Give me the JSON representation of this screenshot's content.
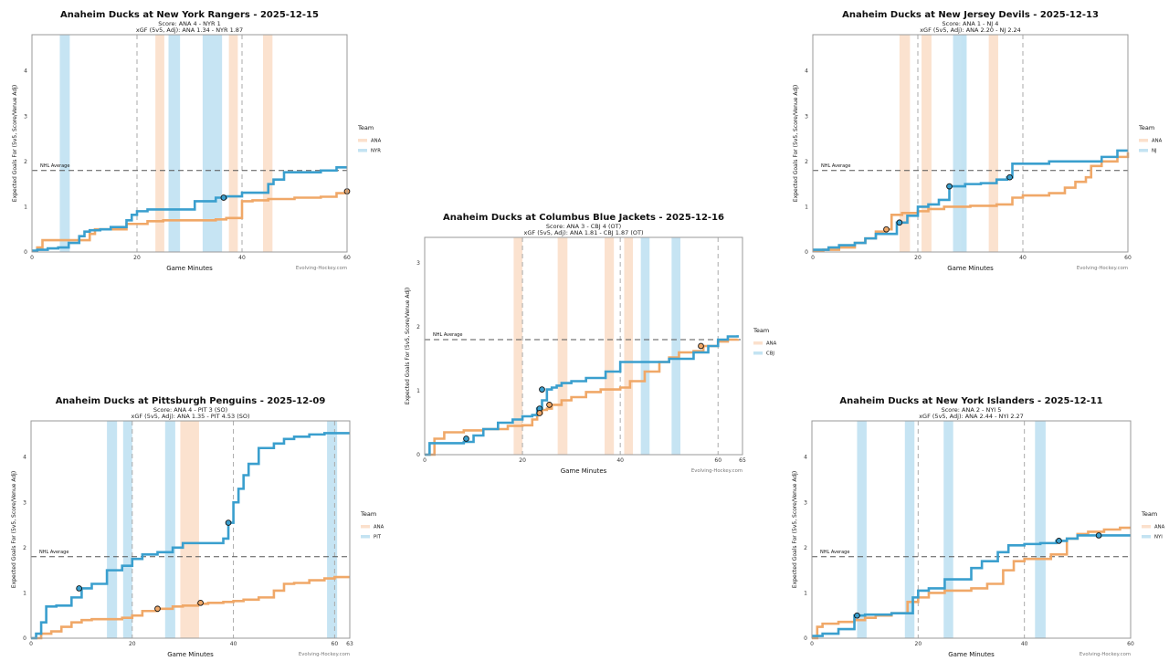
{
  "common": {
    "xlabel": "Game Minutes",
    "ylabel": "Expected Goals For (5v5, Score/Venue Adj)",
    "legend_title": "Team",
    "nhl_avg_label": "NHL Average",
    "nhl_avg_value": 1.8,
    "watermark": "Evolving-Hockey.com",
    "colors": {
      "ANA": "#f0a868",
      "opp": "#3a9fce",
      "ana_band": "#fbe0cc",
      "opp_band": "#c3e3f2"
    }
  },
  "chart_data": [
    {
      "type": "line",
      "title": "Anaheim Ducks at New York Rangers - 2025-12-15",
      "subtitle1": "Score: ANA 4 - NYR 1",
      "subtitle2": "xGF (5v5, Adj): ANA 1.34 - NYR 1.87",
      "xlim": [
        0,
        60
      ],
      "ylim": [
        0,
        4.8
      ],
      "xticks": [
        0,
        20,
        40,
        60
      ],
      "yticks": [
        0,
        1,
        2,
        3,
        4
      ],
      "period_lines": [
        20,
        40
      ],
      "legend": [
        "ANA",
        "NYR"
      ],
      "series": [
        {
          "name": "ANA",
          "x": [
            0,
            1,
            2,
            5,
            10,
            11,
            12,
            15,
            18,
            20,
            22,
            25,
            30,
            35,
            37,
            40,
            42,
            45,
            50,
            55,
            58,
            60
          ],
          "y": [
            0.02,
            0.1,
            0.26,
            0.26,
            0.26,
            0.4,
            0.5,
            0.5,
            0.62,
            0.62,
            0.68,
            0.7,
            0.7,
            0.72,
            0.75,
            1.12,
            1.14,
            1.17,
            1.2,
            1.22,
            1.3,
            1.34
          ]
        },
        {
          "name": "NYR",
          "x": [
            0,
            1,
            3,
            5,
            7,
            9,
            10,
            11,
            13,
            15,
            18,
            19,
            20,
            22,
            25,
            30,
            31,
            35,
            36,
            37,
            40,
            41,
            45,
            46,
            48,
            52,
            55,
            58,
            60
          ],
          "y": [
            0.03,
            0.05,
            0.08,
            0.1,
            0.2,
            0.35,
            0.45,
            0.48,
            0.5,
            0.55,
            0.7,
            0.82,
            0.9,
            0.94,
            0.94,
            0.94,
            1.12,
            1.2,
            1.2,
            1.23,
            1.31,
            1.31,
            1.5,
            1.6,
            1.76,
            1.76,
            1.8,
            1.87,
            1.87
          ]
        }
      ],
      "goals": [
        {
          "team": "opp",
          "x": 36.5,
          "y": 1.2
        },
        {
          "team": "ANA",
          "x": 60,
          "y": 1.34
        }
      ],
      "bands": [
        {
          "team": "opp",
          "x0": 5.3,
          "x1": 7.2
        },
        {
          "team": "ANA",
          "x0": 23.5,
          "x1": 25.2
        },
        {
          "team": "opp",
          "x0": 26.0,
          "x1": 28.2
        },
        {
          "team": "opp",
          "x0": 32.5,
          "x1": 36.2
        },
        {
          "team": "ANA",
          "x0": 37.5,
          "x1": 39.2
        },
        {
          "team": "ANA",
          "x0": 44.0,
          "x1": 45.8
        }
      ]
    },
    {
      "type": "line",
      "title": "Anaheim Ducks at New Jersey Devils - 2025-12-13",
      "subtitle1": "Score: ANA 1 - NJ 4",
      "subtitle2": "xGF (5v5, Adj): ANA 2.20 - NJ 2.24",
      "xlim": [
        0,
        60
      ],
      "ylim": [
        0,
        4.8
      ],
      "xticks": [
        0,
        20,
        40,
        60
      ],
      "yticks": [
        0,
        1,
        2,
        3,
        4
      ],
      "period_lines": [
        20,
        40
      ],
      "legend": [
        "ANA",
        "NJ"
      ],
      "series": [
        {
          "name": "ANA",
          "x": [
            0,
            2,
            5,
            8,
            10,
            12,
            14,
            15,
            17,
            20,
            22,
            25,
            28,
            30,
            35,
            38,
            40,
            45,
            48,
            50,
            52,
            53,
            55,
            58,
            60
          ],
          "y": [
            0.02,
            0.05,
            0.1,
            0.2,
            0.3,
            0.45,
            0.5,
            0.82,
            0.86,
            0.9,
            0.95,
            1.0,
            1.0,
            1.02,
            1.05,
            1.2,
            1.25,
            1.3,
            1.42,
            1.55,
            1.65,
            1.9,
            2.0,
            2.1,
            2.2
          ]
        },
        {
          "name": "NJ",
          "x": [
            0,
            3,
            5,
            8,
            10,
            12,
            15,
            16,
            18,
            20,
            22,
            24,
            26,
            27,
            29,
            32,
            35,
            37,
            38,
            40,
            45,
            50,
            55,
            58,
            60
          ],
          "y": [
            0.05,
            0.1,
            0.15,
            0.2,
            0.3,
            0.4,
            0.4,
            0.65,
            0.8,
            1.0,
            1.05,
            1.15,
            1.45,
            1.45,
            1.5,
            1.52,
            1.6,
            1.65,
            1.95,
            1.95,
            2.0,
            2.0,
            2.1,
            2.24,
            2.24
          ]
        }
      ],
      "goals": [
        {
          "team": "ANA",
          "x": 14,
          "y": 0.5
        },
        {
          "team": "opp",
          "x": 16.5,
          "y": 0.65
        },
        {
          "team": "opp",
          "x": 26,
          "y": 1.45
        },
        {
          "team": "opp",
          "x": 37.5,
          "y": 1.65
        }
      ],
      "bands": [
        {
          "team": "ANA",
          "x0": 16.5,
          "x1": 18.5
        },
        {
          "team": "ANA",
          "x0": 20.7,
          "x1": 22.6
        },
        {
          "team": "opp",
          "x0": 26.7,
          "x1": 29.3
        },
        {
          "team": "opp",
          "x0": 28.3,
          "x1": 29.2
        },
        {
          "team": "ANA",
          "x0": 33.5,
          "x1": 35.3
        }
      ]
    },
    {
      "type": "line",
      "title": "Anaheim Ducks at Columbus Blue Jackets - 2025-12-16",
      "subtitle1": "Score: ANA 3 - CBJ 4 (OT)",
      "subtitle2": "xGF (5v5, Adj): ANA 1.81 - CBJ 1.87 (OT)",
      "xlim": [
        0,
        65
      ],
      "ylim": [
        0,
        3.4
      ],
      "xticks": [
        0,
        20,
        40,
        60,
        65
      ],
      "yticks": [
        0,
        1,
        2,
        3
      ],
      "period_lines": [
        20,
        40,
        60
      ],
      "legend": [
        "ANA",
        "CBJ"
      ],
      "series": [
        {
          "name": "ANA",
          "x": [
            0,
            2,
            4,
            8,
            12,
            17,
            20,
            22,
            23,
            24,
            25,
            26,
            28,
            30,
            33,
            36,
            40,
            42,
            45,
            48,
            50,
            52,
            55,
            57,
            60,
            62,
            64
          ],
          "y": [
            0.0,
            0.25,
            0.35,
            0.38,
            0.4,
            0.45,
            0.46,
            0.55,
            0.65,
            0.7,
            0.72,
            0.78,
            0.85,
            0.9,
            0.98,
            1.02,
            1.05,
            1.15,
            1.3,
            1.45,
            1.52,
            1.6,
            1.62,
            1.7,
            1.77,
            1.8,
            1.81
          ]
        },
        {
          "name": "CBJ",
          "x": [
            0,
            1,
            3,
            5,
            8,
            10,
            12,
            15,
            18,
            20,
            22,
            23,
            24,
            25,
            26,
            27,
            28,
            30,
            33,
            35,
            37,
            40,
            42,
            45,
            48,
            50,
            55,
            58,
            60,
            62,
            64
          ],
          "y": [
            0.0,
            0.18,
            0.18,
            0.18,
            0.2,
            0.3,
            0.4,
            0.5,
            0.55,
            0.6,
            0.62,
            0.72,
            0.85,
            1.02,
            1.05,
            1.08,
            1.12,
            1.15,
            1.2,
            1.2,
            1.3,
            1.45,
            1.45,
            1.45,
            1.45,
            1.5,
            1.6,
            1.7,
            1.8,
            1.85,
            1.87
          ]
        }
      ],
      "goals": [
        {
          "team": "opp",
          "x": 8.5,
          "y": 0.25
        },
        {
          "team": "opp",
          "x": 23.5,
          "y": 0.72
        },
        {
          "team": "ANA",
          "x": 23.5,
          "y": 0.65
        },
        {
          "team": "ANA",
          "x": 25.5,
          "y": 0.78
        },
        {
          "team": "opp",
          "x": 24,
          "y": 1.02
        },
        {
          "team": "ANA",
          "x": 56.5,
          "y": 1.7
        }
      ],
      "bands": [
        {
          "team": "ANA",
          "x0": 18.2,
          "x1": 20.0
        },
        {
          "team": "ANA",
          "x0": 27.2,
          "x1": 29.2
        },
        {
          "team": "ANA",
          "x0": 36.8,
          "x1": 38.7
        },
        {
          "team": "ANA",
          "x0": 40.8,
          "x1": 42.6
        },
        {
          "team": "opp",
          "x0": 44.2,
          "x1": 46.0
        },
        {
          "team": "opp",
          "x0": 50.5,
          "x1": 52.3
        }
      ]
    },
    {
      "type": "line",
      "title": "Anaheim Ducks at Pittsburgh Penguins - 2025-12-09",
      "subtitle1": "Score: ANA 4 - PIT 3 (SO)",
      "subtitle2": "xGF (5v5, Adj): ANA 1.35 - PIT 4.53 (SO)",
      "xlim": [
        0,
        63
      ],
      "ylim": [
        0,
        4.8
      ],
      "xticks": [
        0,
        20,
        40,
        60,
        63
      ],
      "yticks": [
        0,
        1,
        2,
        3,
        4
      ],
      "period_lines": [
        20,
        40,
        60
      ],
      "legend": [
        "ANA",
        "PIT"
      ],
      "series": [
        {
          "name": "ANA",
          "x": [
            0,
            2,
            4,
            6,
            8,
            10,
            12,
            15,
            18,
            20,
            22,
            25,
            28,
            30,
            33,
            35,
            38,
            40,
            42,
            45,
            48,
            50,
            52,
            55,
            58,
            60,
            63
          ],
          "y": [
            0.0,
            0.1,
            0.15,
            0.25,
            0.35,
            0.4,
            0.42,
            0.42,
            0.45,
            0.5,
            0.6,
            0.65,
            0.7,
            0.72,
            0.76,
            0.78,
            0.8,
            0.82,
            0.85,
            0.9,
            1.05,
            1.2,
            1.22,
            1.28,
            1.32,
            1.35,
            1.35
          ]
        },
        {
          "name": "PIT",
          "x": [
            0,
            1,
            2,
            3,
            5,
            8,
            10,
            12,
            15,
            18,
            20,
            22,
            25,
            28,
            30,
            35,
            38,
            39,
            40,
            41,
            42,
            43,
            45,
            48,
            50,
            52,
            55,
            58,
            60,
            63
          ],
          "y": [
            0.0,
            0.1,
            0.35,
            0.7,
            0.72,
            0.9,
            1.1,
            1.2,
            1.5,
            1.6,
            1.75,
            1.85,
            1.9,
            2.0,
            2.1,
            2.1,
            2.2,
            2.55,
            3.0,
            3.3,
            3.6,
            3.85,
            4.2,
            4.3,
            4.4,
            4.45,
            4.5,
            4.53,
            4.53,
            4.53
          ]
        }
      ],
      "goals": [
        {
          "team": "opp",
          "x": 9.5,
          "y": 1.1
        },
        {
          "team": "ANA",
          "x": 25,
          "y": 0.65
        },
        {
          "team": "ANA",
          "x": 33.5,
          "y": 0.78
        },
        {
          "team": "opp",
          "x": 39,
          "y": 2.55
        }
      ],
      "bands": [
        {
          "team": "opp",
          "x0": 15.0,
          "x1": 17.0
        },
        {
          "team": "opp",
          "x0": 18.2,
          "x1": 20.0
        },
        {
          "team": "opp",
          "x0": 26.5,
          "x1": 28.5
        },
        {
          "team": "ANA",
          "x0": 29.5,
          "x1": 33.2
        },
        {
          "team": "opp",
          "x0": 58.5,
          "x1": 60.5
        }
      ]
    },
    {
      "type": "line",
      "title": "Anaheim Ducks at New York Islanders - 2025-12-11",
      "subtitle1": "Score: ANA 2 - NYI 5",
      "subtitle2": "xGF (5v5, Adj): ANA 2.44 - NYI 2.27",
      "xlim": [
        0,
        60
      ],
      "ylim": [
        0,
        4.8
      ],
      "xticks": [
        0,
        20,
        40,
        60
      ],
      "yticks": [
        0,
        1,
        2,
        3,
        4
      ],
      "period_lines": [
        20,
        40
      ],
      "legend": [
        "ANA",
        "NYI"
      ],
      "series": [
        {
          "name": "ANA",
          "x": [
            0,
            1,
            2,
            5,
            8,
            10,
            12,
            15,
            18,
            20,
            22,
            25,
            28,
            30,
            33,
            36,
            38,
            40,
            42,
            45,
            48,
            50,
            52,
            55,
            58,
            60
          ],
          "y": [
            0.0,
            0.25,
            0.32,
            0.36,
            0.4,
            0.45,
            0.5,
            0.55,
            0.8,
            0.9,
            1.0,
            1.05,
            1.05,
            1.1,
            1.2,
            1.5,
            1.7,
            1.75,
            1.75,
            1.85,
            2.2,
            2.3,
            2.35,
            2.4,
            2.44,
            2.44
          ]
        },
        {
          "name": "NYI",
          "x": [
            0,
            2,
            5,
            8,
            10,
            12,
            15,
            18,
            19,
            20,
            22,
            25,
            28,
            30,
            32,
            35,
            37,
            40,
            43,
            46,
            48,
            50,
            55,
            58,
            60
          ],
          "y": [
            0.05,
            0.1,
            0.2,
            0.5,
            0.52,
            0.52,
            0.55,
            0.55,
            0.9,
            1.05,
            1.1,
            1.3,
            1.3,
            1.55,
            1.7,
            1.9,
            2.05,
            2.08,
            2.1,
            2.15,
            2.2,
            2.27,
            2.27,
            2.27,
            2.27
          ]
        }
      ],
      "goals": [
        {
          "team": "opp",
          "x": 8.5,
          "y": 0.5
        },
        {
          "team": "opp",
          "x": 46.5,
          "y": 2.15
        },
        {
          "team": "opp",
          "x": 54,
          "y": 2.27
        }
      ],
      "bands": [
        {
          "team": "opp",
          "x0": 8.5,
          "x1": 10.3
        },
        {
          "team": "opp",
          "x0": 17.5,
          "x1": 19.3
        },
        {
          "team": "opp",
          "x0": 24.8,
          "x1": 26.6
        },
        {
          "team": "opp",
          "x0": 42.0,
          "x1": 44.0
        }
      ]
    }
  ]
}
